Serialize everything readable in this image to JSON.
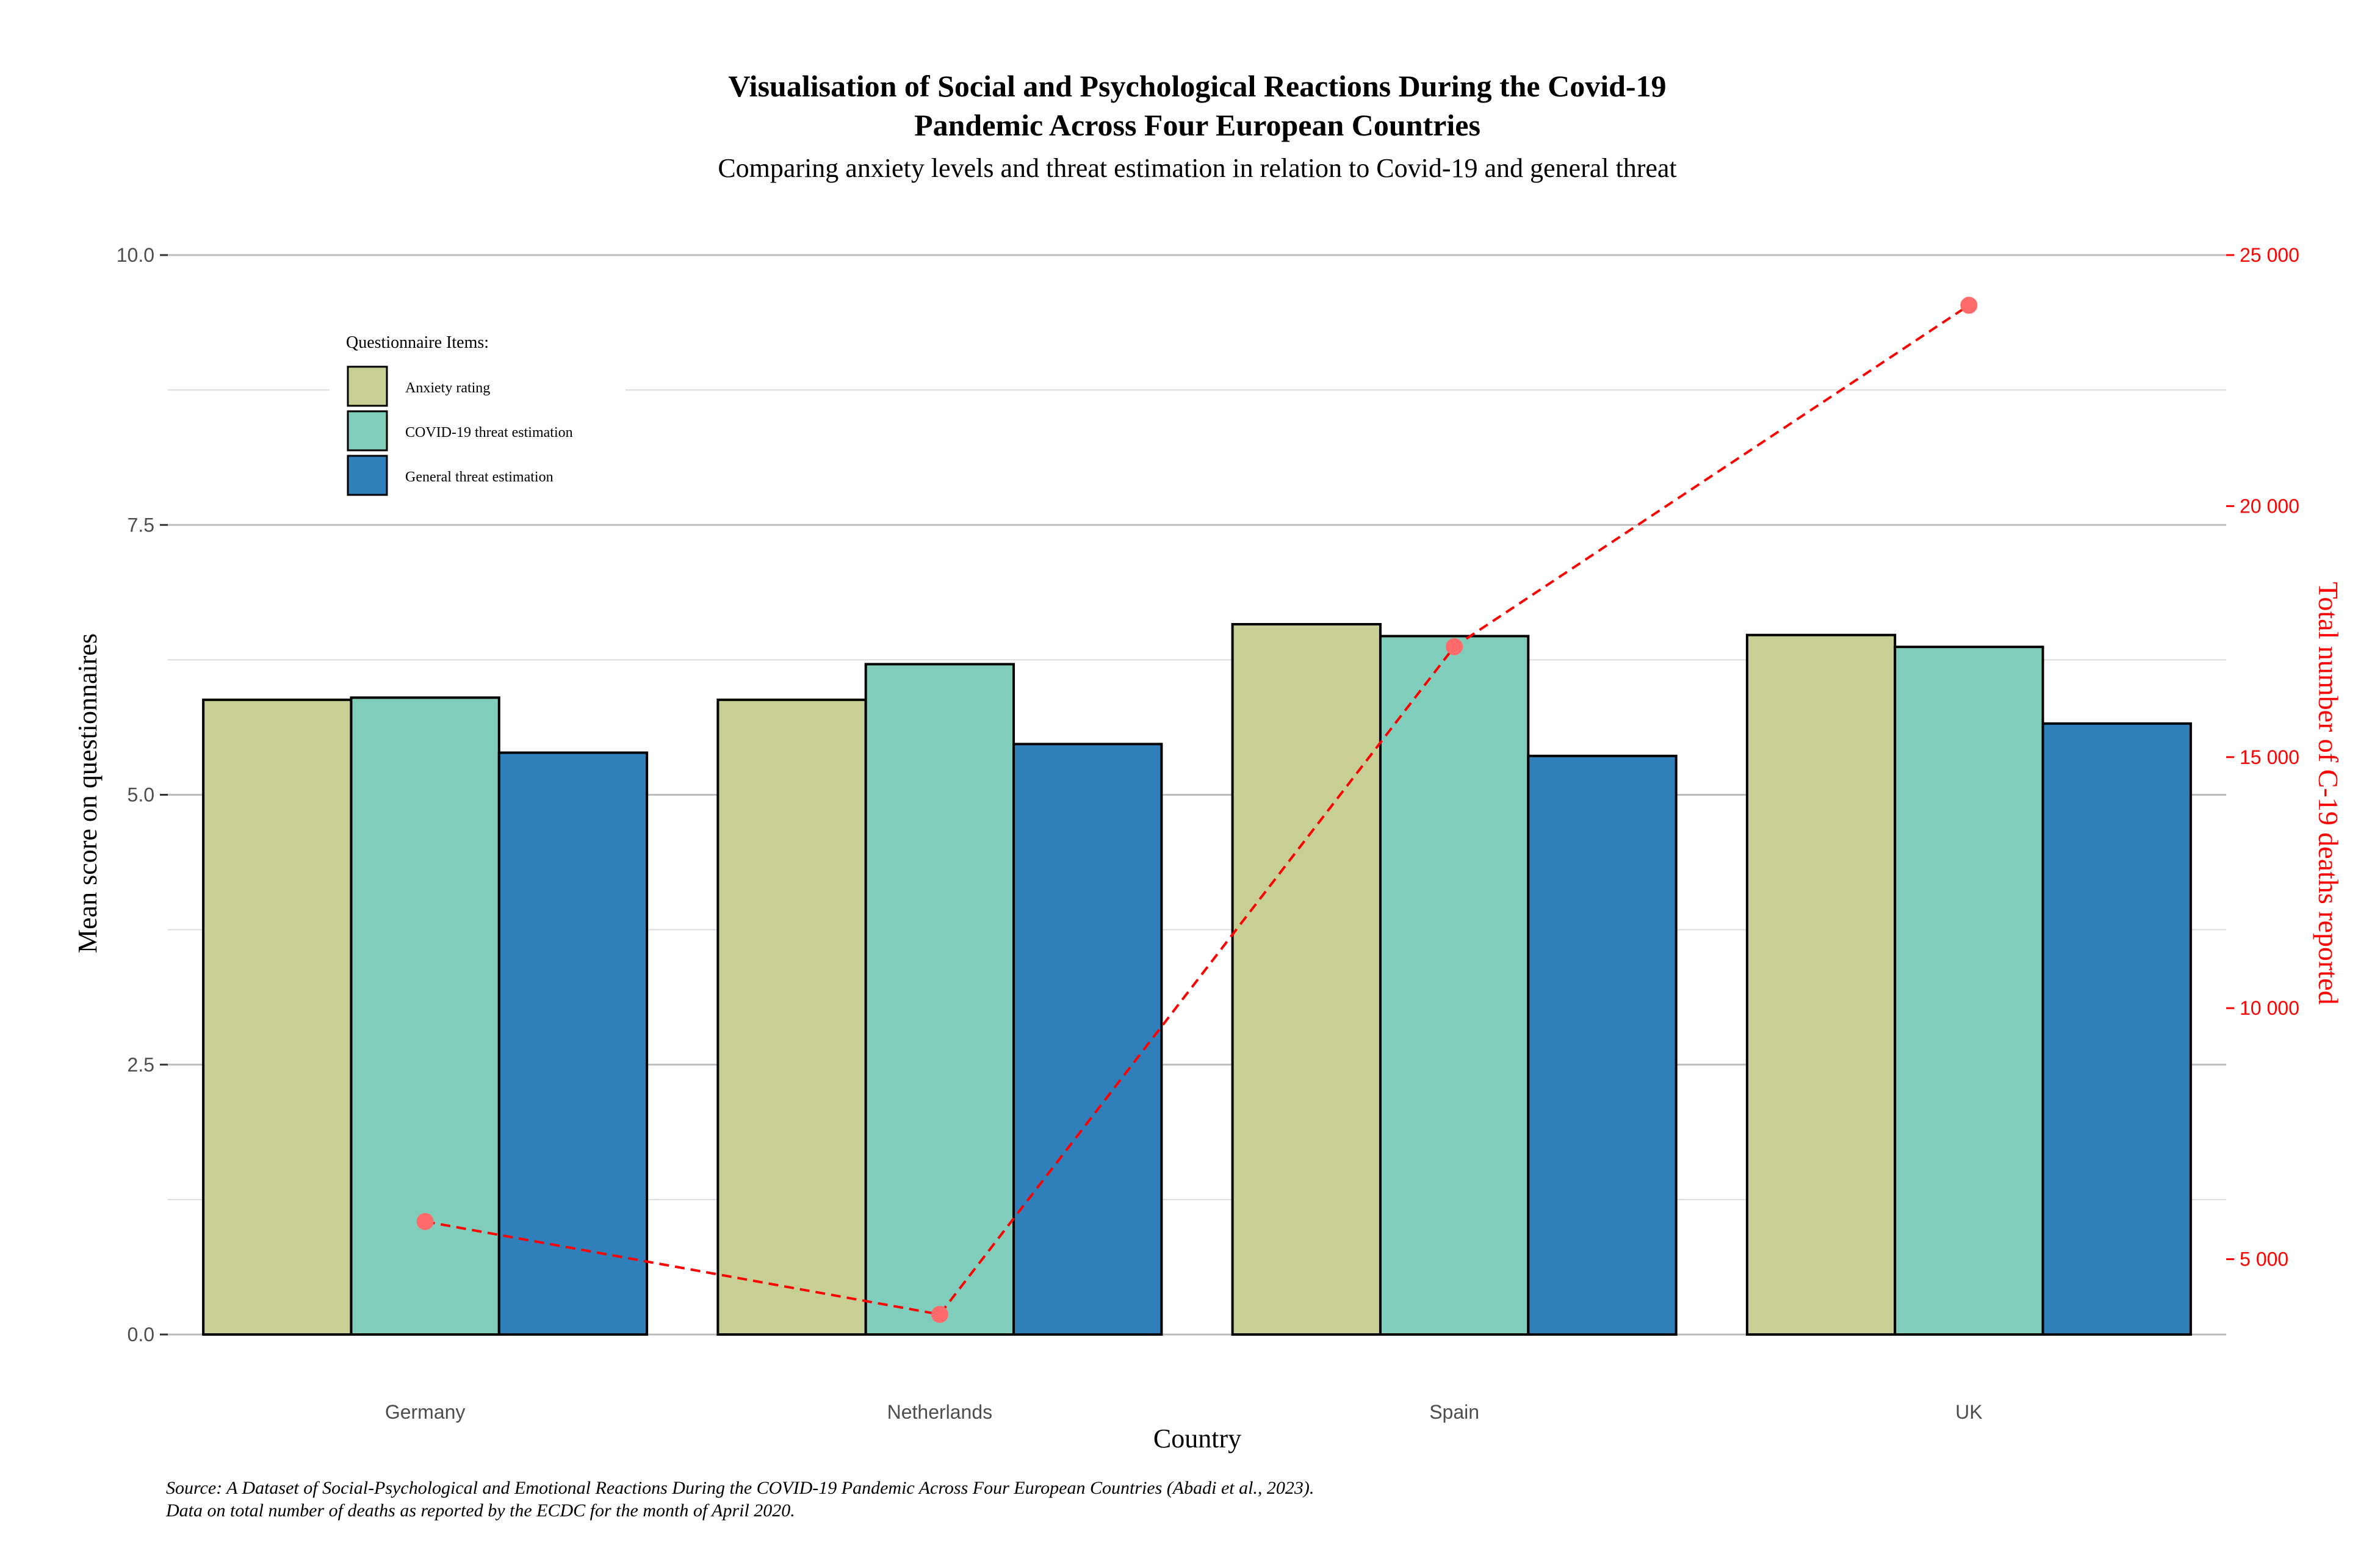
{
  "chart_data": {
    "type": "bar",
    "title_line1": "Visualisation of Social and Psychological Reactions During the Covid-19",
    "title_line2": "Pandemic Across Four European Countries",
    "subtitle": "Comparing anxiety levels and threat estimation in relation to Covid-19 and general threat",
    "xlabel": "Country",
    "ylabel": "Mean score on questionnaires",
    "y2label": "Total number of C-19 deaths reported",
    "categories": [
      "Germany",
      "Netherlands",
      "Spain",
      "UK"
    ],
    "ylim": [
      0,
      10
    ],
    "yticks": [
      0.0,
      2.5,
      5.0,
      7.5,
      10.0
    ],
    "ytick_labels": [
      "0.0",
      "2.5",
      "5.0",
      "7.5",
      "10.0"
    ],
    "y2lim": [
      3500,
      25000
    ],
    "y2ticks": [
      5000,
      10000,
      15000,
      20000,
      25000
    ],
    "y2tick_labels": [
      "5 000",
      "10 000",
      "15 000",
      "20 000",
      "25 000"
    ],
    "legend_title": "Questionnaire Items:",
    "legend_position": "top-left",
    "grid": true,
    "series": [
      {
        "name": "Anxiety rating",
        "color": "#c7cf95",
        "values": [
          5.88,
          5.88,
          6.58,
          6.48
        ]
      },
      {
        "name": "COVID-19 threat estimation",
        "color": "#80cdbb",
        "values": [
          5.9,
          6.21,
          6.47,
          6.37
        ]
      },
      {
        "name": "General threat estimation",
        "color": "#2e7fba",
        "values": [
          5.39,
          5.47,
          5.36,
          5.66
        ]
      }
    ],
    "deaths": {
      "type": "line",
      "color": "#ff0000",
      "point_color": "#ff6b6b",
      "values": [
        5750,
        3900,
        17200,
        24000
      ]
    },
    "caption_line1": "Source: A Dataset of Social-Psychological and Emotional Reactions During the COVID-19 Pandemic Across Four European Countries (Abadi et al., 2023).",
    "caption_line2": "Data on total number of deaths as reported by the ECDC for the month of April 2020."
  }
}
